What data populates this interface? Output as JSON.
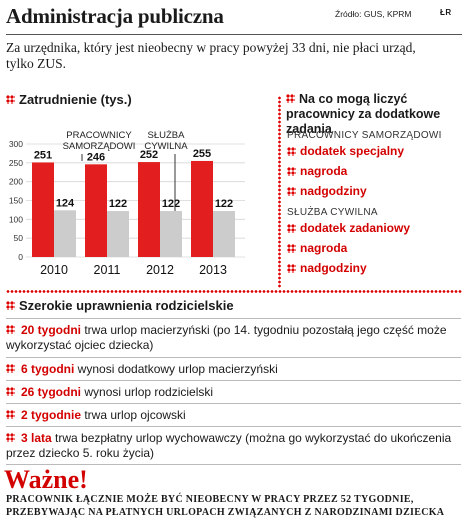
{
  "header": {
    "title": "Administracja publiczna",
    "source": "Źródło: GUS, KPRM",
    "logo": "ŁR",
    "subtitle": "Za urzędnika, który jest nieobecny w pracy powyżej 33 dni, nie płaci urząd, tylko ZUS."
  },
  "colors": {
    "accent": "#d30000",
    "bar_red": "#e31e1e",
    "bar_gray": "#cccccc"
  },
  "chart_data": {
    "type": "bar",
    "title": "Zatrudnienie (tys.)",
    "categories": [
      "2010",
      "2011",
      "2012",
      "2013"
    ],
    "series": [
      {
        "name": "PRACOWNICY SAMORZĄDOWI",
        "values": [
          251,
          246,
          252,
          255
        ]
      },
      {
        "name": "SŁUŻBA CYWILNA",
        "values": [
          124,
          122,
          122,
          122
        ]
      }
    ],
    "yticks": [
      0,
      50,
      100,
      150,
      200,
      250,
      300
    ],
    "ylim": [
      0,
      300
    ],
    "grid": true
  },
  "right_panel": {
    "title": "Na co mogą liczyć pracownicy za dodatkowe zadania",
    "groups": [
      {
        "label": "PRACOWNICY SAMORZĄDOWI",
        "items": [
          "dodatek specjalny",
          "nagroda",
          "nadgodziny"
        ]
      },
      {
        "label": "SŁUŻBA CYWILNA",
        "items": [
          "dodatek zadaniowy",
          "nagroda",
          "nadgodziny"
        ]
      }
    ]
  },
  "parental": {
    "title": "Szerokie uprawnienia rodzicielskie",
    "rows": [
      {
        "highlight": "20 tygodni",
        "text": " trwa urlop macierzyński (po 14. tygodniu pozostałą jego część może wykorzystać ojciec dziecka)"
      },
      {
        "highlight": "6 tygodni",
        "text": " wynosi dodatkowy urlop macierzyński"
      },
      {
        "highlight": "26 tygodni",
        "text": " wynosi urlop rodzicielski"
      },
      {
        "highlight": "2 tygodnie",
        "text": " trwa urlop ojcowski"
      },
      {
        "highlight": "3 lata",
        "text": " trwa bezpłatny urlop wychowawczy (można go wykorzystać do ukończenia przez dziecko 5. roku życia)"
      }
    ]
  },
  "important": {
    "title": "Ważne!",
    "text": "Pracownik łącznie może być nieobecny w pracy przez 52 tygodnie, przebywając na płatnych urlopach związanych z narodzinami dziecka"
  }
}
